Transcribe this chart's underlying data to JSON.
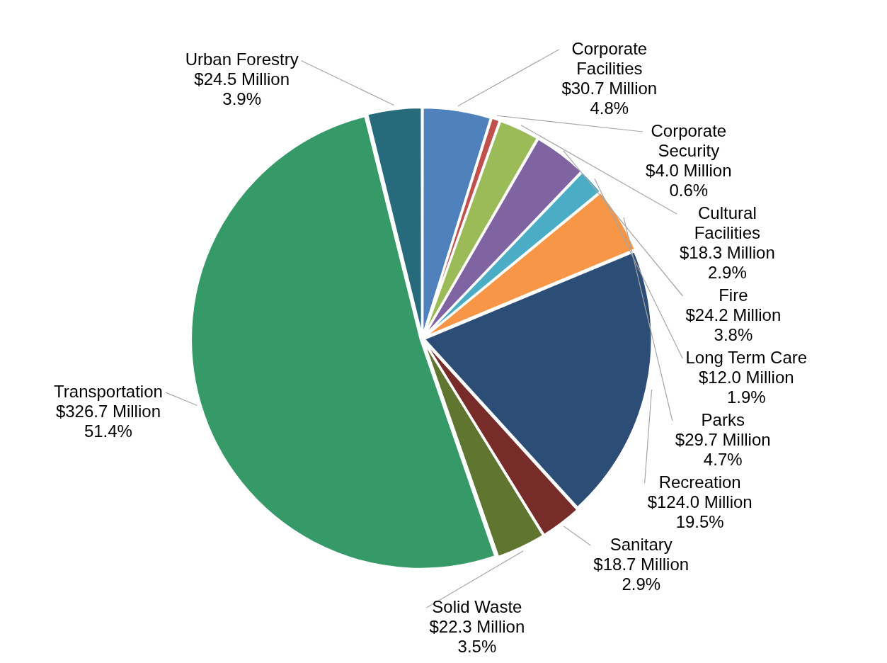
{
  "chart_data": {
    "type": "pie",
    "categories": [
      "Corporate Facilities",
      "Corporate Security",
      "Cultural Facilities",
      "Fire",
      "Long Term Care",
      "Parks",
      "Recreation",
      "Sanitary",
      "Solid Waste",
      "Transportation",
      "Urban Forestry"
    ],
    "values": [
      30.7,
      4.0,
      18.3,
      24.2,
      12.0,
      29.7,
      124.0,
      18.7,
      22.3,
      326.7,
      24.5
    ],
    "colors": [
      "#4f81bd",
      "#c0504d",
      "#9bbb59",
      "#8064a2",
      "#4bacc6",
      "#f79646",
      "#2c4d75",
      "#772c2a",
      "#5f7530",
      "#359968",
      "#276a7c"
    ],
    "value_labels": [
      "$30.7 Million\n4.8%",
      "$4.0 Million\n0.6%",
      "$18.3 Million\n2.9%",
      "$24.2 Million\n3.8%",
      "$12.0 Million\n1.9%",
      "$29.7 Million\n4.7%",
      "$124.0 Million\n19.5%",
      "$18.7 Million\n2.9%",
      "$22.3 Million\n3.5%",
      "$326.7 Million\n51.4%",
      "$24.5 Million\n3.9%"
    ],
    "legend": false
  }
}
